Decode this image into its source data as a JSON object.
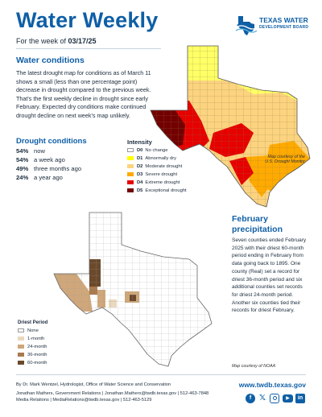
{
  "header": {
    "title": "Water Weekly",
    "subtitle_prefix": "For the week of ",
    "week_date": "03/17/25",
    "logo_line1": "TEXAS WATER",
    "logo_line2": "DEVELOPMENT BOARD"
  },
  "water_conditions": {
    "heading": "Water conditions",
    "paragraph": "The latest drought map for conditions as of March 11 shows a small (less than one percentage point) decrease in drought compared to the previous week. That's the first weekly decline in drought since early February. Expected dry conditions make continued drought decline on next week's map unlikely."
  },
  "drought_conditions": {
    "heading": "Drought conditions",
    "stats": [
      {
        "value": "54%",
        "label": "now"
      },
      {
        "value": "54%",
        "label": "a week ago"
      },
      {
        "value": "49%",
        "label": "three months ago"
      },
      {
        "value": "24%",
        "label": "a year ago"
      }
    ]
  },
  "intensity_legend": {
    "title": "Intensity",
    "items": [
      {
        "code": "D0",
        "label": "No change",
        "color": "#ffffff"
      },
      {
        "code": "D1",
        "label": "Abnormally dry",
        "color": "#ffff00"
      },
      {
        "code": "D2",
        "label": "Moderate drought",
        "color": "#fcd37f"
      },
      {
        "code": "D3",
        "label": "Severe drought",
        "color": "#ffaa00"
      },
      {
        "code": "D4",
        "label": "Extreme drought",
        "color": "#e60000"
      },
      {
        "code": "D5",
        "label": "Exceptional drought",
        "color": "#730000"
      }
    ]
  },
  "drought_map_credit_line1": "Map courtesy of the",
  "drought_map_credit_line2": "U.S. Drought Monitor",
  "february_precip": {
    "heading_line1": "February",
    "heading_line2": "precipitation",
    "paragraph": "Seven counties ended February 2025 with their driest 60-month period ending in February from data going back to 1895. One county (Real) set a record for driest 36-month period and six additional counties set records for driest 24-month period. Another six counties tied their records for driest February."
  },
  "driest_period_legend": {
    "title": "Driest Period",
    "items": [
      {
        "label": "None",
        "color": "#ffffff"
      },
      {
        "label": "1-month",
        "color": "#ead8bf"
      },
      {
        "label": "24-month",
        "color": "#cfa77a"
      },
      {
        "label": "36-month",
        "color": "#a97a4e"
      },
      {
        "label": "60-month",
        "color": "#6b4a2c"
      }
    ]
  },
  "noaa_credit": "Map courtesy of NOAA",
  "footer": {
    "line1": "By Dr. Mark Wentzel, Hydrologist, Office of Water Science and Conservation",
    "line2": "Jonathan Mathers, Government Relations | Jonathan.Mathers@twdb.texas.gov | 512-463-7848",
    "line3": "Media Relations | MediaRelations@twdb.texas.gov | 512-463-5129",
    "website": "www.twdb.texas.gov",
    "social": [
      "facebook-icon",
      "x-icon",
      "instagram-icon",
      "youtube-icon",
      "linkedin-icon"
    ]
  }
}
